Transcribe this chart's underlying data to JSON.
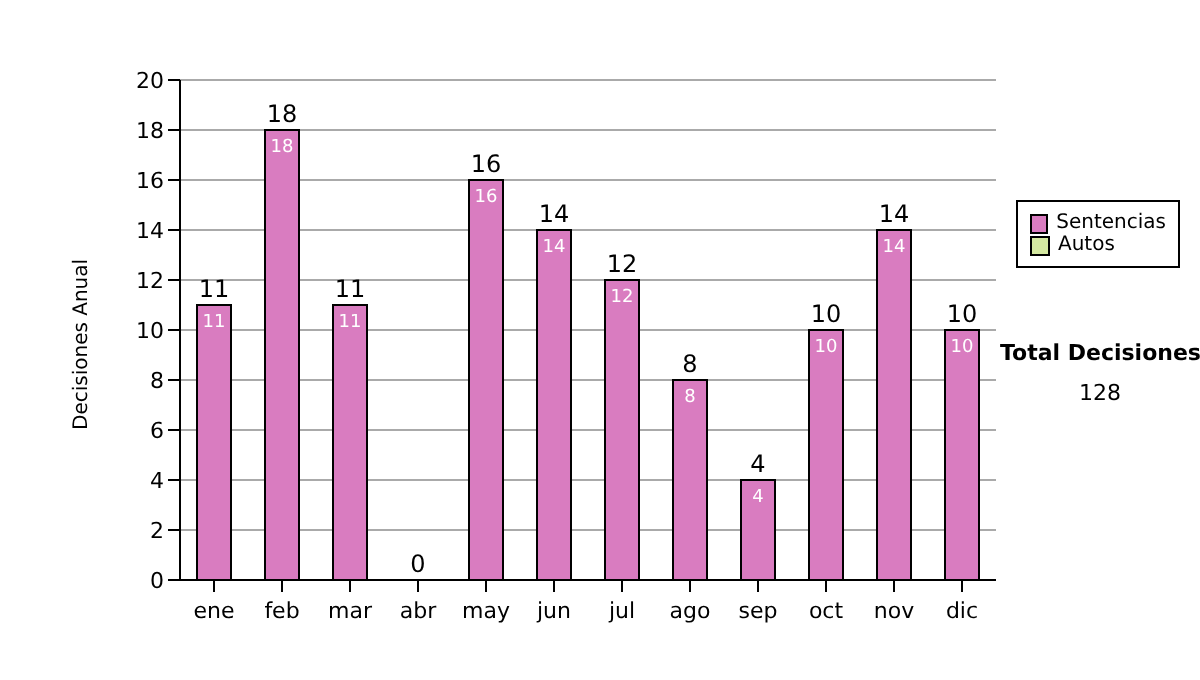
{
  "chart_data": {
    "type": "bar",
    "ylabel": "Decisiones Anual",
    "categories": [
      "ene",
      "feb",
      "mar",
      "abr",
      "may",
      "jun",
      "jul",
      "ago",
      "sep",
      "oct",
      "nov",
      "dic"
    ],
    "series": [
      {
        "name": "Sentencias",
        "color": "#d97cc0",
        "values": [
          11,
          18,
          11,
          0,
          16,
          14,
          12,
          8,
          4,
          10,
          14,
          10
        ],
        "value_labels": [
          "11",
          "18",
          "11",
          null,
          "16",
          "14",
          "12",
          "8",
          "4",
          "10",
          "14",
          "10"
        ]
      },
      {
        "name": "Autos",
        "color": "#d4e8a0",
        "values": [
          0,
          0,
          0,
          0,
          0,
          0,
          0,
          0,
          0,
          0,
          0,
          0
        ]
      }
    ],
    "stacked": true,
    "totals": [
      "11",
      "18",
      "11",
      "0",
      "16",
      "14",
      "12",
      "8",
      "4",
      "10",
      "14",
      "10"
    ],
    "ylim": [
      0,
      20
    ],
    "yticks": [
      0,
      2,
      4,
      6,
      8,
      10,
      12,
      14,
      16,
      18,
      20
    ],
    "grid": "y",
    "legend": "right",
    "annotations": [
      "Total Decisiones",
      "128"
    ]
  }
}
